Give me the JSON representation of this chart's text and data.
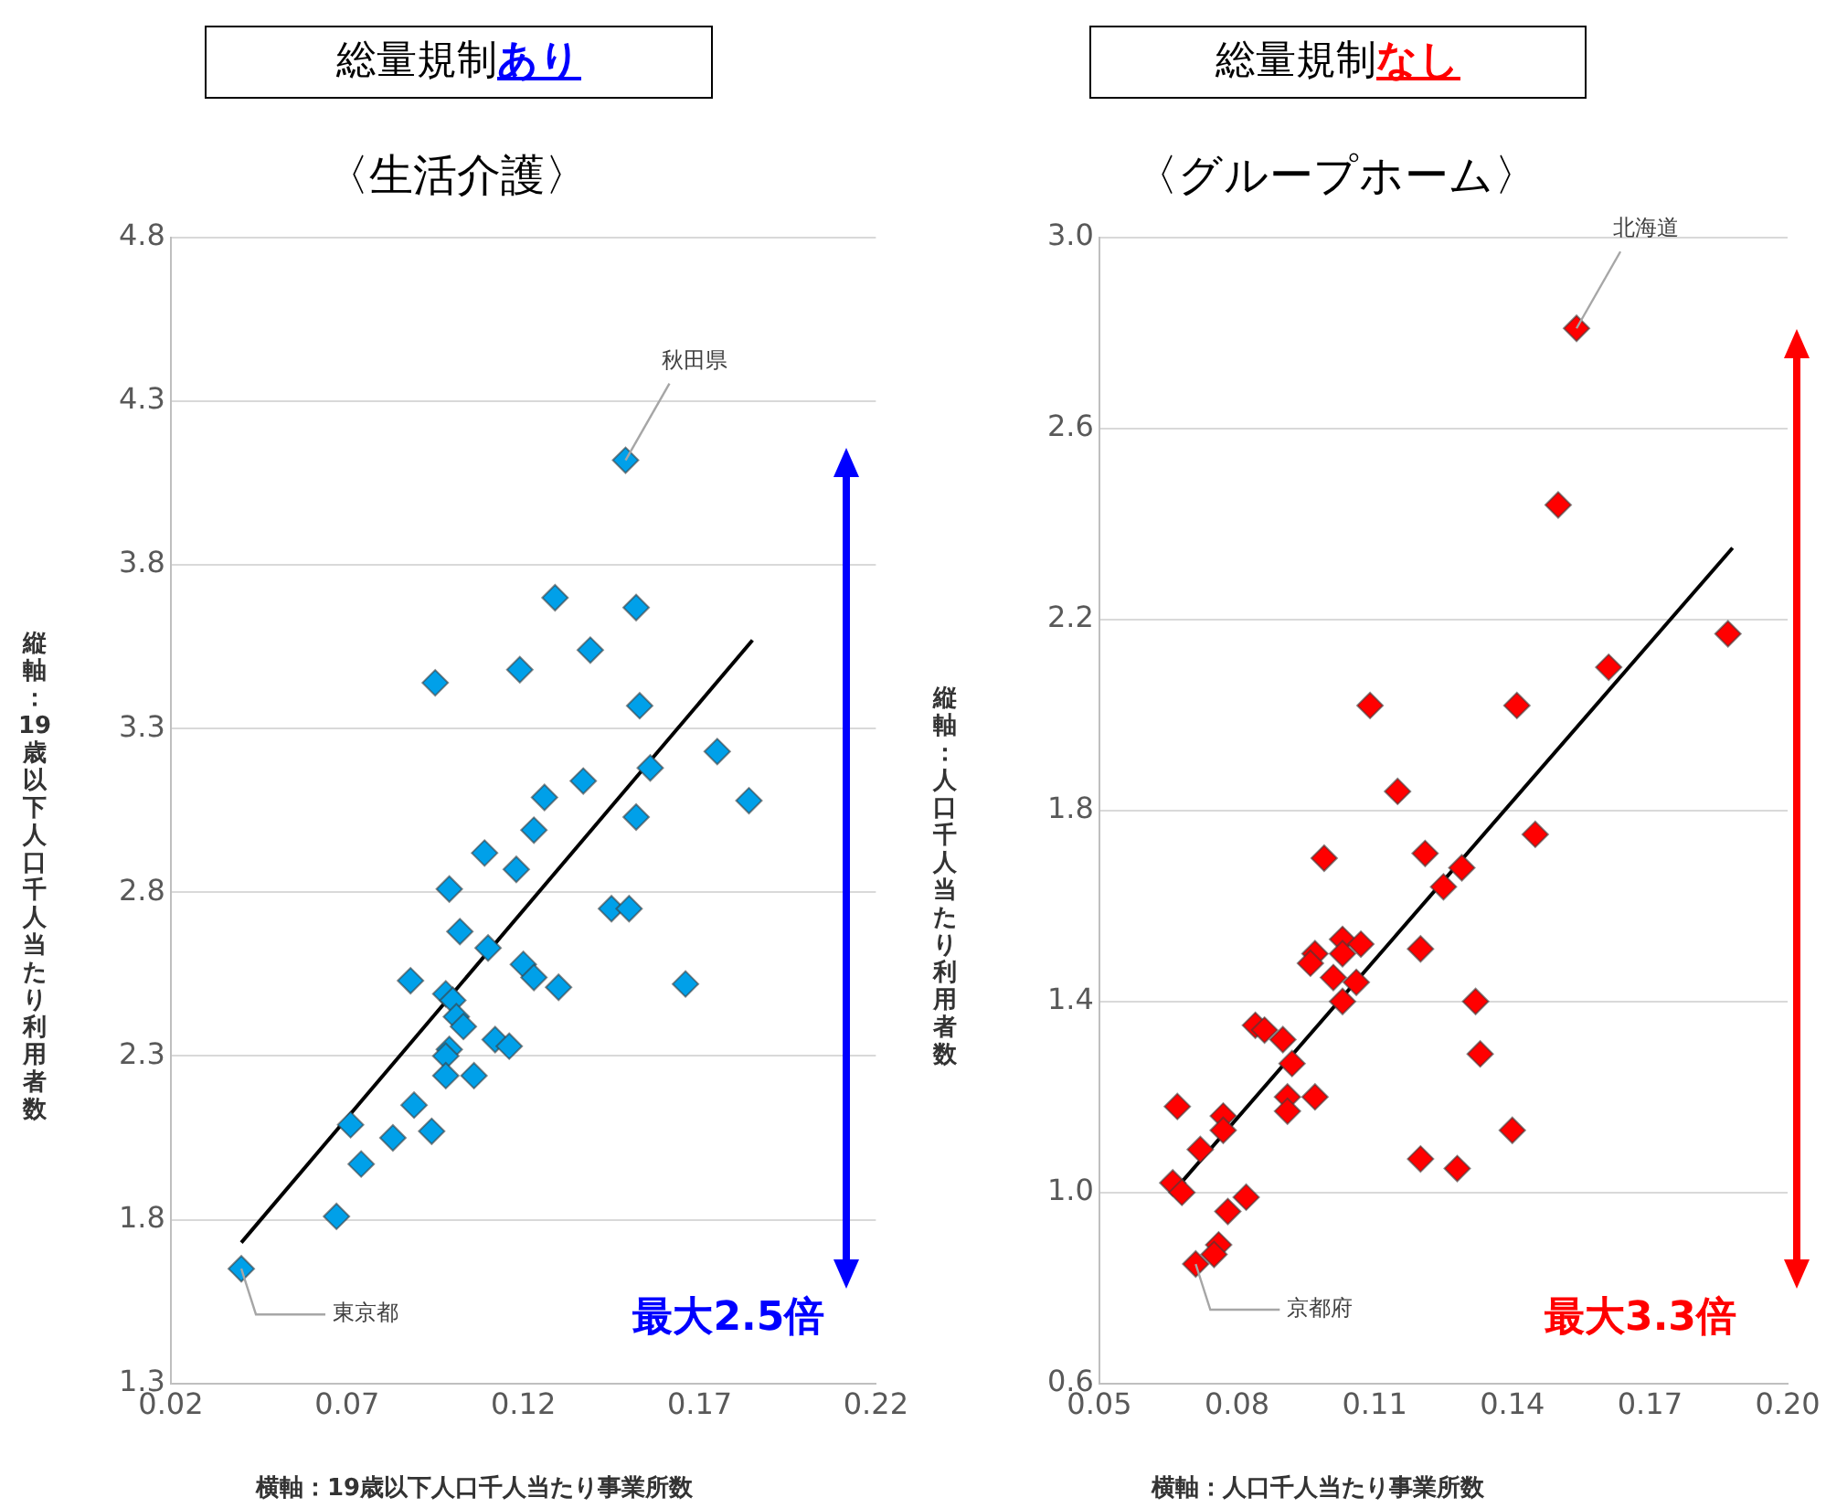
{
  "chart_data": [
    {
      "type": "scatter",
      "title": "総量規制あり",
      "subtitle": "〈生活介護〉",
      "xlabel": "横軸：19歳以下人口千人当たり事業所数",
      "ylabel": "縦軸：19歳以下人口千人当たり利用者数",
      "xlim": [
        0.02,
        0.22
      ],
      "xticks": [
        0.02,
        0.07,
        0.12,
        0.17,
        0.22
      ],
      "ylim": [
        1.3,
        4.8
      ],
      "yticks": [
        1.3,
        1.8,
        2.3,
        2.8,
        3.3,
        3.8,
        4.3,
        4.8
      ],
      "grid": "y",
      "legend": false,
      "marker": "diamond",
      "series": [
        {
          "color": "#00a0e9",
          "x": [
            0.149,
            0.129,
            0.152,
            0.139,
            0.119,
            0.095,
            0.153,
            0.137,
            0.126,
            0.175,
            0.184,
            0.156,
            0.152,
            0.123,
            0.109,
            0.118,
            0.099,
            0.145,
            0.15,
            0.102,
            0.11,
            0.12,
            0.123,
            0.13,
            0.088,
            0.166,
            0.098,
            0.1,
            0.101,
            0.103,
            0.112,
            0.116,
            0.099,
            0.098,
            0.098,
            0.106,
            0.071,
            0.083,
            0.089,
            0.094,
            0.074,
            0.067,
            0.04
          ],
          "values": [
            4.12,
            3.7,
            3.67,
            3.54,
            3.48,
            3.44,
            3.37,
            3.14,
            3.09,
            3.23,
            3.08,
            3.18,
            3.03,
            2.99,
            2.92,
            2.87,
            2.81,
            2.75,
            2.75,
            2.68,
            2.63,
            2.58,
            2.54,
            2.51,
            2.53,
            2.52,
            2.49,
            2.47,
            2.42,
            2.39,
            2.35,
            2.33,
            2.32,
            2.3,
            2.24,
            2.24,
            2.09,
            2.05,
            2.15,
            2.07,
            1.97,
            1.81,
            1.65
          ]
        },
        {
          "type": "line",
          "color": "#000000",
          "marker": "none",
          "x": [
            0.04,
            0.185
          ],
          "values": [
            1.73,
            3.57
          ]
        }
      ],
      "annotations": [
        {
          "text": "秋田県",
          "x": 0.149,
          "y": 4.12
        },
        {
          "text": "東京都",
          "x": 0.04,
          "y": 1.65
        },
        "最大2.5倍"
      ]
    },
    {
      "type": "scatter",
      "title": "総量規制なし",
      "subtitle": "〈グループホーム〉",
      "xlabel": "横軸：人口千人当たり事業所数",
      "ylabel": "縦軸：人口千人当たり利用者数",
      "xlim": [
        0.05,
        0.2
      ],
      "xticks": [
        0.05,
        0.08,
        0.11,
        0.14,
        0.17,
        {
          "value": 0.2,
          "label": "0.20"
        }
      ],
      "ylim": [
        0.6,
        3.0
      ],
      "yticks": [
        0.6,
        {
          "value": 1.0,
          "label": "1.0"
        },
        1.4,
        1.8,
        2.2,
        2.6,
        {
          "value": 3.0,
          "label": "3.0"
        }
      ],
      "grid": "y",
      "legend": false,
      "marker": "diamond",
      "series": [
        {
          "color": "#ff0000",
          "x": [
            0.154,
            0.15,
            0.187,
            0.161,
            0.109,
            0.141,
            0.115,
            0.145,
            0.121,
            0.099,
            0.129,
            0.125,
            0.103,
            0.107,
            0.097,
            0.103,
            0.12,
            0.096,
            0.101,
            0.106,
            0.103,
            0.132,
            0.084,
            0.086,
            0.09,
            0.092,
            0.133,
            0.067,
            0.077,
            0.077,
            0.091,
            0.097,
            0.091,
            0.14,
            0.12,
            0.128,
            0.072,
            0.066,
            0.068,
            0.078,
            0.082,
            0.076,
            0.075,
            0.071
          ],
          "values": [
            2.81,
            2.44,
            2.17,
            2.1,
            2.02,
            2.02,
            1.84,
            1.75,
            1.71,
            1.7,
            1.68,
            1.64,
            1.53,
            1.52,
            1.5,
            1.5,
            1.51,
            1.48,
            1.45,
            1.44,
            1.4,
            1.4,
            1.35,
            1.34,
            1.32,
            1.27,
            1.29,
            1.18,
            1.16,
            1.13,
            1.2,
            1.2,
            1.17,
            1.13,
            1.07,
            1.05,
            1.09,
            1.02,
            1.0,
            0.96,
            0.99,
            0.89,
            0.87,
            0.85
          ]
        },
        {
          "type": "line",
          "color": "#000000",
          "marker": "none",
          "x": [
            0.066,
            0.188
          ],
          "values": [
            1.0,
            2.35
          ]
        }
      ],
      "annotations": [
        {
          "text": "北海道",
          "x": 0.154,
          "y": 2.81
        },
        {
          "text": "京都府",
          "x": 0.071,
          "y": 0.85
        },
        "最大3.3倍"
      ]
    }
  ]
}
